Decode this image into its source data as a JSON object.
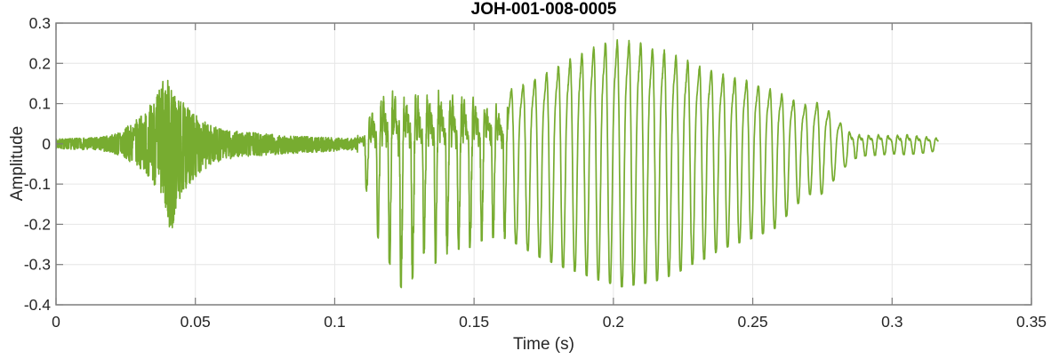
{
  "chart_data": {
    "type": "line",
    "title": "JOH-001-008-0005",
    "xlabel": "Time (s)",
    "ylabel": "Amplitude",
    "xlim": [
      0,
      0.35
    ],
    "ylim": [
      -0.4,
      0.3
    ],
    "xticks": {
      "values": [
        0,
        0.05,
        0.1,
        0.15,
        0.2,
        0.25,
        0.3,
        0.35
      ],
      "labels": [
        "0",
        "0.05",
        "0.1",
        "0.15",
        "0.2",
        "0.25",
        "0.3",
        "0.35"
      ]
    },
    "yticks": {
      "values": [
        -0.4,
        -0.3,
        -0.2,
        -0.1,
        0,
        0.1,
        0.2,
        0.3
      ],
      "labels": [
        "-0.4",
        "-0.3",
        "-0.2",
        "-0.1",
        "0",
        "0.1",
        "0.2",
        "0.3"
      ]
    },
    "grid": true,
    "legend": null,
    "line_color": "#77ac30",
    "axis_color": "#7d7d7d",
    "grid_color": "#e6e6e6",
    "text_color": "#262626",
    "description": "speech waveform: breath noise, plosive burst near t=0.04, low noise, voiced segment from t=0.11 peaking near t=0.2, decaying ripple to t=0.316",
    "signal_end_time": 0.3165,
    "envelope": [
      [
        0.0,
        0.012,
        -0.012
      ],
      [
        0.008,
        0.014,
        -0.014
      ],
      [
        0.015,
        0.016,
        -0.016
      ],
      [
        0.02,
        0.022,
        -0.022
      ],
      [
        0.024,
        0.035,
        -0.035
      ],
      [
        0.028,
        0.055,
        -0.05
      ],
      [
        0.032,
        0.08,
        -0.07
      ],
      [
        0.035,
        0.11,
        -0.1
      ],
      [
        0.038,
        0.155,
        -0.14
      ],
      [
        0.04,
        0.165,
        -0.19
      ],
      [
        0.0415,
        0.14,
        -0.245
      ],
      [
        0.043,
        0.12,
        -0.17
      ],
      [
        0.046,
        0.1,
        -0.12
      ],
      [
        0.049,
        0.08,
        -0.09
      ],
      [
        0.052,
        0.06,
        -0.07
      ],
      [
        0.056,
        0.045,
        -0.05
      ],
      [
        0.06,
        0.035,
        -0.04
      ],
      [
        0.066,
        0.03,
        -0.033
      ],
      [
        0.073,
        0.027,
        -0.03
      ],
      [
        0.08,
        0.022,
        -0.026
      ],
      [
        0.09,
        0.018,
        -0.022
      ],
      [
        0.1,
        0.015,
        -0.018
      ],
      [
        0.107,
        0.013,
        -0.015
      ],
      [
        0.1095,
        0.03,
        -0.04
      ],
      [
        0.1115,
        0.09,
        -0.12
      ],
      [
        0.1135,
        0.14,
        -0.2
      ],
      [
        0.116,
        0.17,
        -0.24
      ],
      [
        0.119,
        0.19,
        -0.285
      ],
      [
        0.1225,
        0.2,
        -0.345
      ],
      [
        0.126,
        0.19,
        -0.375
      ],
      [
        0.129,
        0.2,
        -0.31
      ],
      [
        0.132,
        0.185,
        -0.27
      ],
      [
        0.1355,
        0.2,
        -0.3
      ],
      [
        0.139,
        0.21,
        -0.28
      ],
      [
        0.143,
        0.185,
        -0.26
      ],
      [
        0.147,
        0.175,
        -0.265
      ],
      [
        0.151,
        0.165,
        -0.245
      ],
      [
        0.155,
        0.155,
        -0.235
      ],
      [
        0.159,
        0.15,
        -0.23
      ],
      [
        0.163,
        0.155,
        -0.24
      ],
      [
        0.168,
        0.17,
        -0.26
      ],
      [
        0.173,
        0.19,
        -0.28
      ],
      [
        0.178,
        0.21,
        -0.295
      ],
      [
        0.183,
        0.235,
        -0.31
      ],
      [
        0.188,
        0.255,
        -0.32
      ],
      [
        0.193,
        0.275,
        -0.335
      ],
      [
        0.198,
        0.29,
        -0.345
      ],
      [
        0.203,
        0.295,
        -0.355
      ],
      [
        0.208,
        0.29,
        -0.35
      ],
      [
        0.213,
        0.275,
        -0.345
      ],
      [
        0.218,
        0.265,
        -0.335
      ],
      [
        0.223,
        0.25,
        -0.32
      ],
      [
        0.228,
        0.23,
        -0.3
      ],
      [
        0.233,
        0.215,
        -0.285
      ],
      [
        0.238,
        0.2,
        -0.265
      ],
      [
        0.243,
        0.19,
        -0.25
      ],
      [
        0.248,
        0.18,
        -0.24
      ],
      [
        0.253,
        0.165,
        -0.225
      ],
      [
        0.258,
        0.15,
        -0.21
      ],
      [
        0.262,
        0.135,
        -0.18
      ],
      [
        0.266,
        0.12,
        -0.15
      ],
      [
        0.27,
        0.11,
        -0.125
      ],
      [
        0.274,
        0.12,
        -0.13
      ],
      [
        0.278,
        0.09,
        -0.1
      ],
      [
        0.282,
        0.055,
        -0.065
      ],
      [
        0.286,
        0.032,
        -0.038
      ],
      [
        0.29,
        0.028,
        -0.03
      ],
      [
        0.295,
        0.03,
        -0.028
      ],
      [
        0.3,
        0.027,
        -0.025
      ],
      [
        0.305,
        0.029,
        -0.027
      ],
      [
        0.31,
        0.024,
        -0.024
      ],
      [
        0.314,
        0.022,
        -0.02
      ],
      [
        0.3165,
        0.018,
        -0.016
      ]
    ],
    "segments": [
      {
        "t0": 0.0,
        "t1": 0.0235,
        "kind": "noise",
        "f0": null,
        "detail": "breath noise"
      },
      {
        "t0": 0.0235,
        "t1": 0.058,
        "kind": "noise",
        "f0": null,
        "detail": "plosive burst"
      },
      {
        "t0": 0.058,
        "t1": 0.1085,
        "kind": "noise",
        "f0": null,
        "detail": "low noise"
      },
      {
        "t0": 0.1085,
        "t1": 0.162,
        "kind": "voiced_rich",
        "f0": 242,
        "detail": "voiced, harmonically rich"
      },
      {
        "t0": 0.162,
        "t1": 0.284,
        "kind": "voiced",
        "f0": 237,
        "detail": "voiced, near sinusoidal"
      },
      {
        "t0": 0.284,
        "t1": 0.3165,
        "kind": "ripple",
        "f0": 290,
        "detail": "decaying ripple"
      }
    ]
  }
}
